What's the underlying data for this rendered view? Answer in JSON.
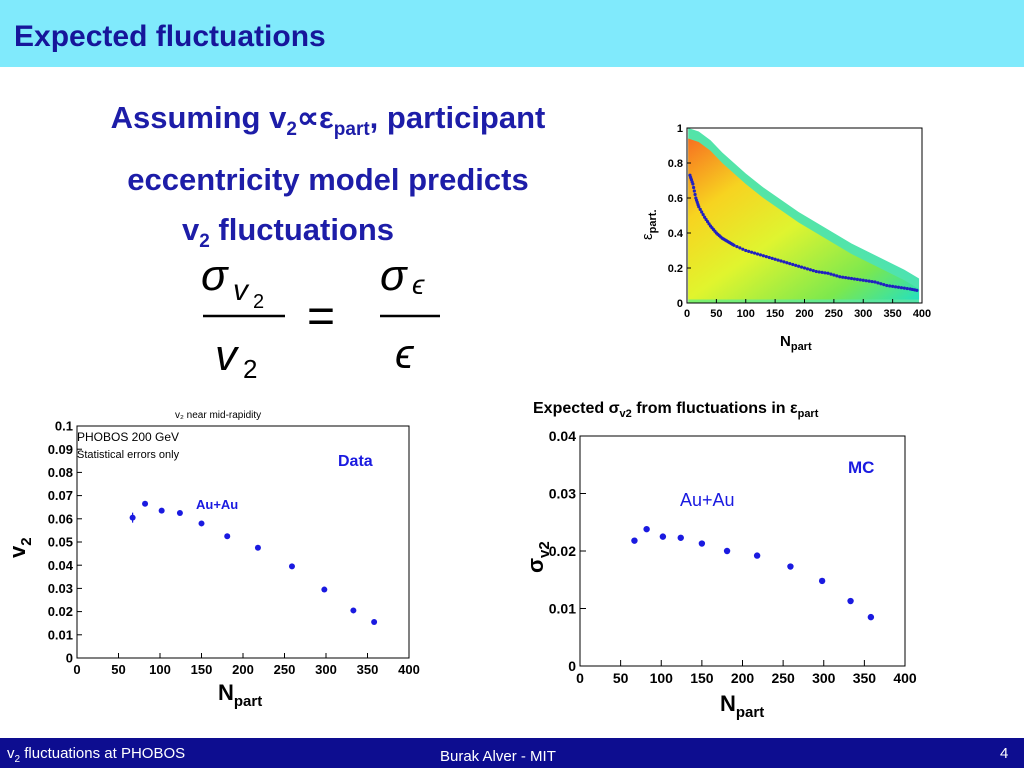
{
  "title": "Expected fluctuations",
  "bullet": {
    "line1_start": "Assuming v",
    "line1_sub1": "2",
    "line1_symbol": "∝ε",
    "line1_sub2": "part",
    "line1_end": ", participant",
    "line2": "eccentricity model predicts",
    "line3_start": "v",
    "line3_sub": "2",
    "line3_end": " fluctuations"
  },
  "equation": {
    "lhs_num_symbol": "σ",
    "lhs_num_sub": "v",
    "lhs_num_sub2": "2",
    "lhs_den": "v",
    "lhs_den_sub": "2",
    "equals": "=",
    "rhs_num_symbol": "σ",
    "rhs_num_sub": "ϵ",
    "rhs_den": "ϵ"
  },
  "footer": {
    "left_v": "v",
    "left_sub": "2",
    "left_rest": " fluctuations at PHOBOS",
    "center": "Burak Alver - MIT",
    "page": "4"
  },
  "chart_data": [
    {
      "type": "heatmap",
      "title": "",
      "xlabel": "N",
      "xlabel_sub": "part",
      "ylabel": "ε",
      "ylabel_sub": "part.",
      "xlim": [
        0,
        400
      ],
      "ylim": [
        0,
        1
      ],
      "xticks": [
        "0",
        "50",
        "100",
        "150",
        "200",
        "250",
        "300",
        "350",
        "400"
      ],
      "yticks": [
        "0",
        "0.2",
        "0.4",
        "0.6",
        "0.8",
        "1"
      ],
      "mean_curve": {
        "x": [
          5,
          10,
          15,
          20,
          30,
          40,
          50,
          60,
          70,
          80,
          100,
          120,
          140,
          160,
          180,
          200,
          220,
          240,
          260,
          280,
          300,
          320,
          340,
          360,
          380,
          395
        ],
        "y": [
          0.73,
          0.68,
          0.6,
          0.55,
          0.49,
          0.44,
          0.4,
          0.37,
          0.35,
          0.33,
          0.3,
          0.28,
          0.26,
          0.24,
          0.22,
          0.2,
          0.18,
          0.17,
          0.15,
          0.14,
          0.13,
          0.12,
          0.1,
          0.09,
          0.08,
          0.07
        ]
      }
    },
    {
      "type": "scatter",
      "title": "v₂ near mid-rapidity",
      "annotations": [
        "PHOBOS  200 GeV",
        "Statistical errors only"
      ],
      "labels": [
        "Data",
        "Au+Au"
      ],
      "xlabel": "N",
      "xlabel_sub": "part",
      "ylabel": "v",
      "ylabel_sub": "2",
      "xlim": [
        0,
        400
      ],
      "ylim": [
        0,
        0.1
      ],
      "xticks": [
        "0",
        "50",
        "100",
        "150",
        "200",
        "250",
        "300",
        "350",
        "400"
      ],
      "yticks": [
        "0",
        "0.01",
        "0.02",
        "0.03",
        "0.04",
        "0.05",
        "0.06",
        "0.07",
        "0.08",
        "0.09",
        "0.1"
      ],
      "x": [
        67,
        82,
        102,
        124,
        150,
        181,
        218,
        259,
        298,
        333,
        358
      ],
      "y": [
        0.0605,
        0.0665,
        0.0635,
        0.0625,
        0.058,
        0.0525,
        0.0475,
        0.0395,
        0.0295,
        0.0205,
        0.0155
      ]
    },
    {
      "type": "scatter",
      "title": "Expected σ",
      "title_sub1": "v2",
      "title_mid": " from fluctuations in ε",
      "title_sub2": "part",
      "labels": [
        "MC",
        "Au+Au"
      ],
      "xlabel": "N",
      "xlabel_sub": "part",
      "ylabel": "σ",
      "ylabel_sub": "v2",
      "xlim": [
        0,
        400
      ],
      "ylim": [
        0,
        0.04
      ],
      "xticks": [
        "0",
        "50",
        "100",
        "150",
        "200",
        "250",
        "300",
        "350",
        "400"
      ],
      "yticks": [
        "0",
        "0.01",
        "0.02",
        "0.03",
        "0.04"
      ],
      "x": [
        67,
        82,
        102,
        124,
        150,
        181,
        218,
        259,
        298,
        333,
        358
      ],
      "y": [
        0.0218,
        0.0238,
        0.0225,
        0.0223,
        0.0213,
        0.02,
        0.0192,
        0.0173,
        0.0148,
        0.0113,
        0.0085
      ]
    }
  ]
}
